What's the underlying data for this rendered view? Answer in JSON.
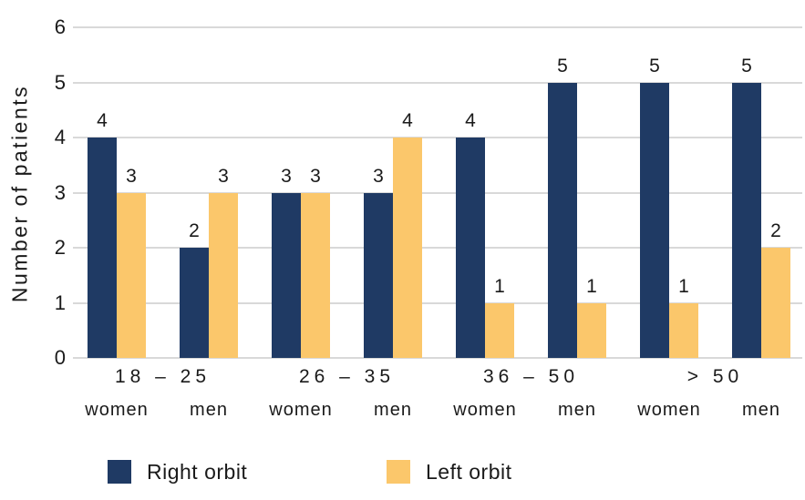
{
  "chart_data": {
    "type": "bar",
    "title": "",
    "ylabel": "Number of patients",
    "xlabel": "",
    "ylim": [
      0,
      6
    ],
    "yticks": [
      0,
      1,
      2,
      3,
      4,
      5,
      6
    ],
    "grid": true,
    "grid_color": "#d9d9d9",
    "text_color": "#1a1a1a",
    "value_labels": true,
    "legend_position": "bottom",
    "groups": [
      {
        "age": "18 – 25",
        "subgroups": [
          "women",
          "men"
        ]
      },
      {
        "age": "26 – 35",
        "subgroups": [
          "women",
          "men"
        ]
      },
      {
        "age": "36 – 50",
        "subgroups": [
          "women",
          "men"
        ]
      },
      {
        "age": "> 50",
        "subgroups": [
          "women",
          "men"
        ]
      }
    ],
    "series": [
      {
        "name": "Right orbit",
        "color": "#1f3a64",
        "values": [
          4,
          2,
          3,
          3,
          4,
          5,
          5,
          5
        ]
      },
      {
        "name": "Left orbit",
        "color": "#fbc76b",
        "values": [
          3,
          3,
          3,
          4,
          1,
          1,
          1,
          2
        ]
      }
    ]
  }
}
